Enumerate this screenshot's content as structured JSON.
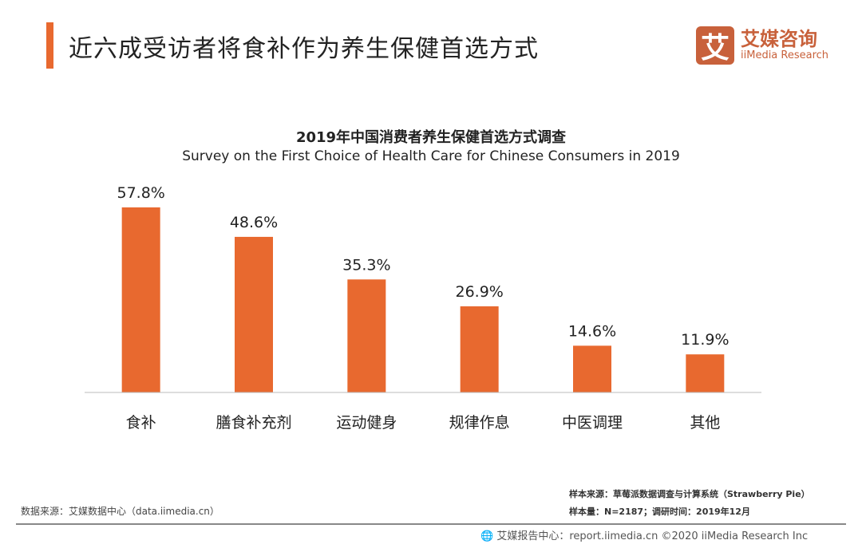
{
  "header": {
    "title": "近六成受访者将食补作为养生保健首选方式"
  },
  "logo": {
    "mark": "艾",
    "cn": "艾媒咨询",
    "en": "iiMedia Research"
  },
  "chart_data": {
    "type": "bar",
    "title": "2019年中国消费者养生保健首选方式调查",
    "subtitle": "Survey on the First Choice of Health Care for Chinese Consumers in 2019",
    "categories": [
      "食补",
      "膳食补充剂",
      "运动健身",
      "规律作息",
      "中医调理",
      "其他"
    ],
    "values": [
      57.8,
      48.6,
      35.3,
      26.9,
      14.6,
      11.9
    ],
    "data_labels": [
      "57.8%",
      "48.6%",
      "35.3%",
      "26.9%",
      "14.6%",
      "11.9%"
    ],
    "unit": "%",
    "ylim": [
      0,
      60
    ],
    "grid": false,
    "bar_color": "#e8692f"
  },
  "notes": {
    "data_source": "数据来源：艾媒数据中心（data.iimedia.cn）",
    "sample_source": "样本来源：草莓派数据调查与计算系统（Strawberry Pie）",
    "sample_size": "样本量：N=2187；调研时间：2019年12月"
  },
  "footer": {
    "text": "艾媒报告中心：report.iimedia.cn ©2020  iiMedia Research Inc",
    "icon": "globe-icon"
  }
}
